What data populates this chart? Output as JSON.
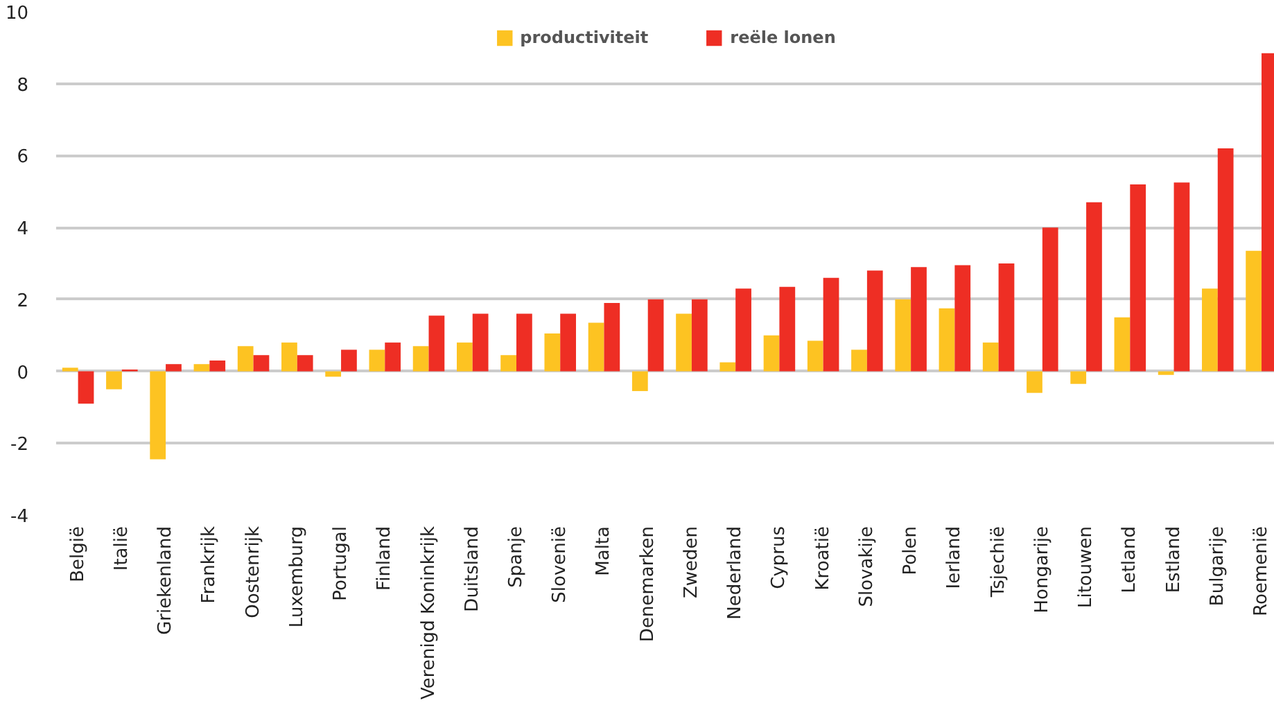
{
  "chart_data": {
    "type": "bar",
    "categories": [
      "België",
      "Italië",
      "Griekenland",
      "Frankrijk",
      "Oostenrijk",
      "Luxemburg",
      "Portugal",
      "Finland",
      "Verenigd Koninkrijk",
      "Duitsland",
      "Spanje",
      "Slovenië",
      "Malta",
      "Denemarken",
      "Zweden",
      "Nederland",
      "Cyprus",
      "Kroatië",
      "Slovakije",
      "Polen",
      "Ierland",
      "Tsjechië",
      "Hongarije",
      "Litouwen",
      "Letland",
      "Estland",
      "Bulgarije",
      "Roemenië"
    ],
    "series": [
      {
        "name": "productiviteit",
        "color": "#fdc322",
        "values": [
          0.1,
          -0.5,
          -2.45,
          0.2,
          0.7,
          0.8,
          -0.15,
          0.6,
          0.7,
          0.8,
          0.45,
          1.05,
          1.35,
          -0.55,
          1.6,
          0.25,
          1.0,
          0.85,
          0.6,
          2.0,
          1.75,
          0.8,
          -0.6,
          -0.35,
          1.5,
          -0.1,
          2.3,
          3.35
        ]
      },
      {
        "name": "reële lonen",
        "color": "#ee2e24",
        "values": [
          -0.9,
          0.05,
          0.2,
          0.3,
          0.45,
          0.45,
          0.6,
          0.8,
          1.55,
          1.6,
          1.6,
          1.6,
          1.9,
          2.0,
          2.0,
          2.3,
          2.35,
          2.6,
          2.8,
          2.9,
          2.95,
          3.0,
          4.0,
          4.7,
          5.2,
          5.25,
          6.2,
          8.85
        ]
      }
    ],
    "ylim": [
      -4,
      10
    ],
    "yticks": [
      -4,
      -2,
      0,
      2,
      4,
      6,
      8,
      10
    ],
    "grid": "y",
    "legend": "top"
  }
}
